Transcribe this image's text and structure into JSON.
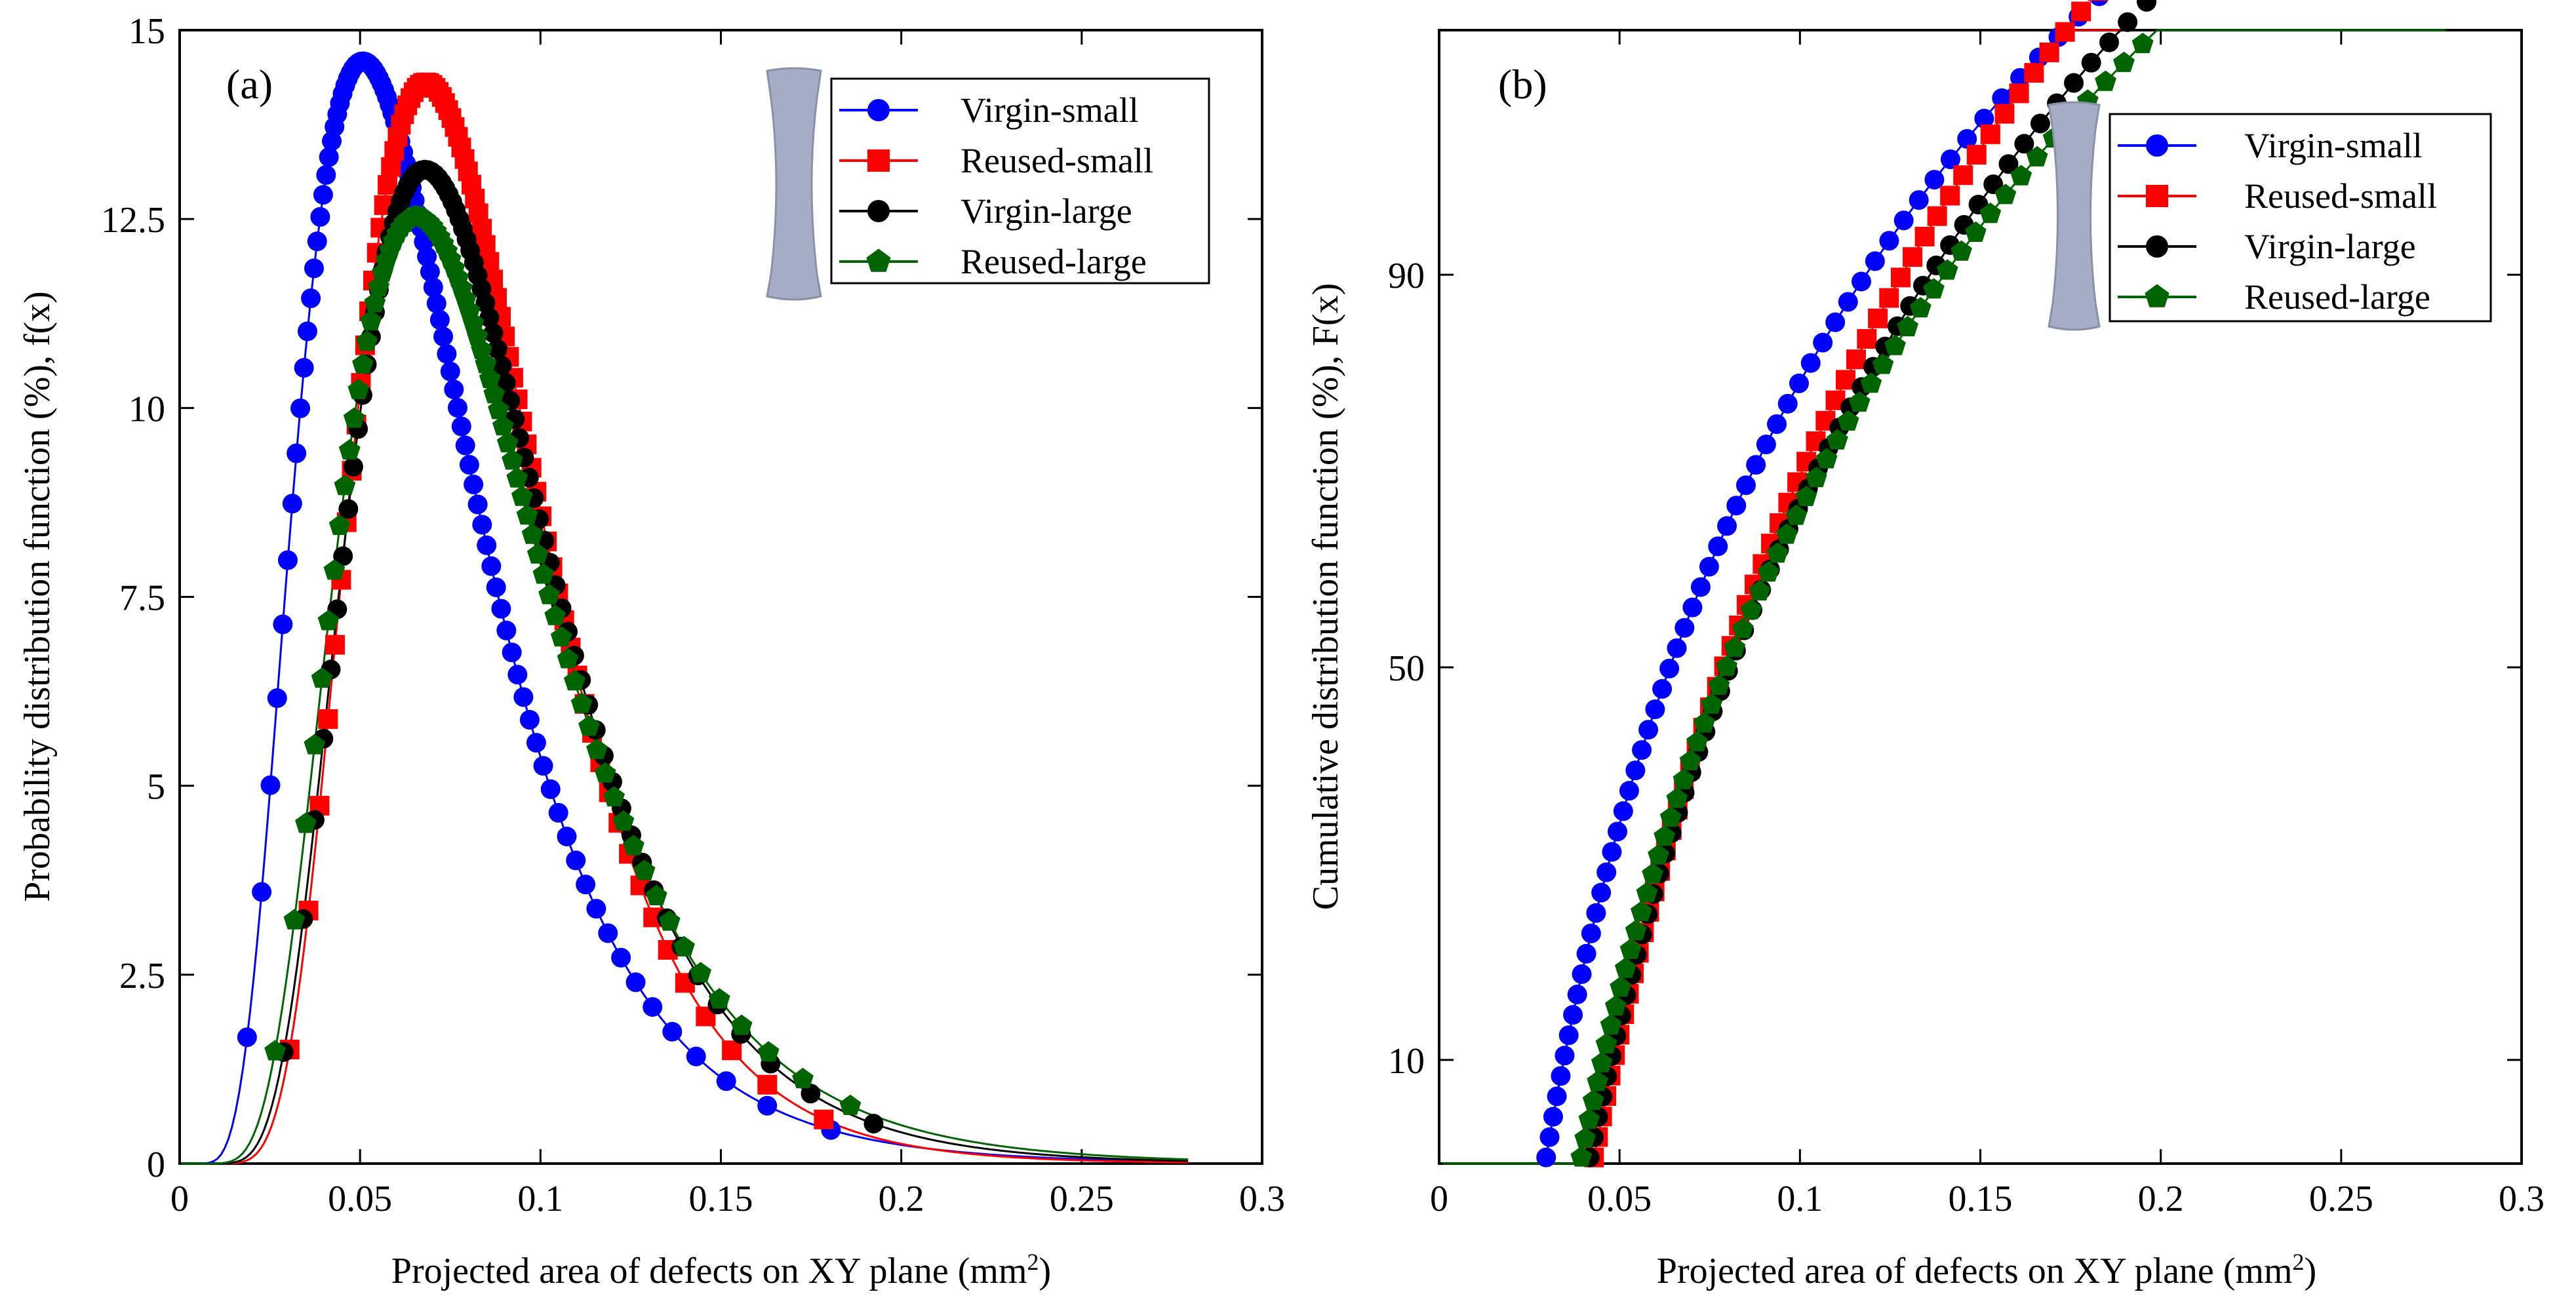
{
  "figure": {
    "description_visible": false
  },
  "chart_data": [
    {
      "type": "line",
      "panel_label": "(a)",
      "xlabel": "Projected area of defects on XY plane (mm",
      "xlabel_sup": "2",
      "xlabel_close": ")",
      "ylabel": "Probability distribution function (%), f(x)",
      "xlim": [
        0,
        0.3
      ],
      "ylim": [
        0,
        15
      ],
      "xticks": [
        0,
        0.05,
        0.1,
        0.15,
        0.2,
        0.25,
        0.3
      ],
      "xtick_labels": [
        "0",
        "0.05",
        "0.1",
        "0.15",
        "0.2",
        "0.25",
        "0.3"
      ],
      "yticks": [
        0,
        2.5,
        5,
        7.5,
        10,
        12.5,
        15
      ],
      "ytick_labels": [
        "0",
        "2.5",
        "5",
        "7.5",
        "10",
        "12.5",
        "15"
      ],
      "legend_position": "top-right",
      "series": [
        {
          "name": "Virgin-small",
          "label": "Virgin-small",
          "color": "#0000ff",
          "marker": "circle",
          "mu": -2.75,
          "sigma": 0.48,
          "xmax": 0.195,
          "n_markers": 95
        },
        {
          "name": "Reused-small",
          "label": "Reused-small",
          "color": "#ff0000",
          "marker": "square",
          "mu": -2.54,
          "sigma": 0.38,
          "xmax": 0.192,
          "n_markers": 80
        },
        {
          "name": "Virgin-large",
          "label": "Virgin-large",
          "color": "#000000",
          "marker": "circle",
          "mu": -2.52,
          "sigma": 0.41,
          "xmax": 0.207,
          "n_markers": 80
        },
        {
          "name": "Reused-large",
          "label": "Reused-large",
          "color": "#006400",
          "marker": "pentagon",
          "mu": -2.53,
          "sigma": 0.44,
          "xmax": 0.195,
          "n_markers": 80
        }
      ]
    },
    {
      "type": "line",
      "panel_label": "(b)",
      "xlabel": "Projected area of defects on XY plane (mm",
      "xlabel_sup": "2",
      "xlabel_close": ")",
      "ylabel": "Cumulative distribution function (%), F(x)",
      "xlim": [
        0,
        0.3
      ],
      "y_scale": "normal-probability",
      "yticks": [
        10,
        50,
        90
      ],
      "ytick_labels": [
        "10",
        "50",
        "90"
      ],
      "legend_position": "top-right",
      "series": [
        {
          "name": "Virgin-small",
          "label": "Virgin-small",
          "color": "#0000ff",
          "marker": "circle",
          "mu": -2.75,
          "sigma": 0.48,
          "xmax": 0.195,
          "n_markers": 60
        },
        {
          "name": "Reused-small",
          "label": "Reused-small",
          "color": "#ff0000",
          "marker": "square",
          "mu": -2.54,
          "sigma": 0.38,
          "xmax": 0.192,
          "n_markers": 60
        },
        {
          "name": "Virgin-large",
          "label": "Virgin-large",
          "color": "#000000",
          "marker": "circle",
          "mu": -2.52,
          "sigma": 0.41,
          "xmax": 0.207,
          "n_markers": 60
        },
        {
          "name": "Reused-large",
          "label": "Reused-large",
          "color": "#006400",
          "marker": "pentagon",
          "mu": -2.53,
          "sigma": 0.44,
          "xmax": 0.195,
          "n_markers": 60
        }
      ]
    }
  ]
}
